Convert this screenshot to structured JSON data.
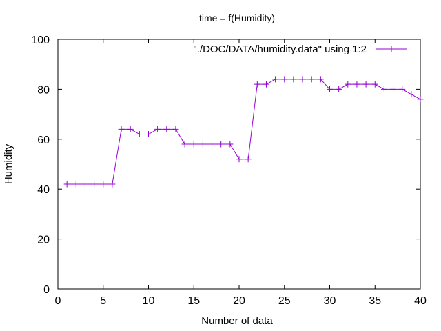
{
  "chart_data": {
    "type": "line",
    "title": "time = f(Humidity)",
    "xlabel": "Number of data",
    "ylabel": "Humidity",
    "xlim": [
      0,
      40
    ],
    "ylim": [
      0,
      100
    ],
    "x_ticks": [
      0,
      5,
      10,
      15,
      20,
      25,
      30,
      35,
      40
    ],
    "y_ticks": [
      0,
      20,
      40,
      60,
      80,
      100
    ],
    "grid": false,
    "legend_position": "top-right",
    "series": [
      {
        "name": "\"./DOC/DATA/humidity.data\" using 1:2",
        "color": "#9400d3",
        "marker": "plus",
        "x": [
          1,
          2,
          3,
          4,
          5,
          6,
          7,
          8,
          9,
          10,
          11,
          12,
          13,
          14,
          15,
          16,
          17,
          18,
          19,
          20,
          21,
          22,
          23,
          24,
          25,
          26,
          27,
          28,
          29,
          30,
          31,
          32,
          33,
          34,
          35,
          36,
          37,
          38,
          39,
          40
        ],
        "values": [
          42,
          42,
          42,
          42,
          42,
          42,
          64,
          64,
          62,
          62,
          64,
          64,
          64,
          58,
          58,
          58,
          58,
          58,
          58,
          52,
          52,
          82,
          82,
          84,
          84,
          84,
          84,
          84,
          84,
          80,
          80,
          82,
          82,
          82,
          82,
          80,
          80,
          80,
          78,
          76
        ]
      }
    ]
  }
}
